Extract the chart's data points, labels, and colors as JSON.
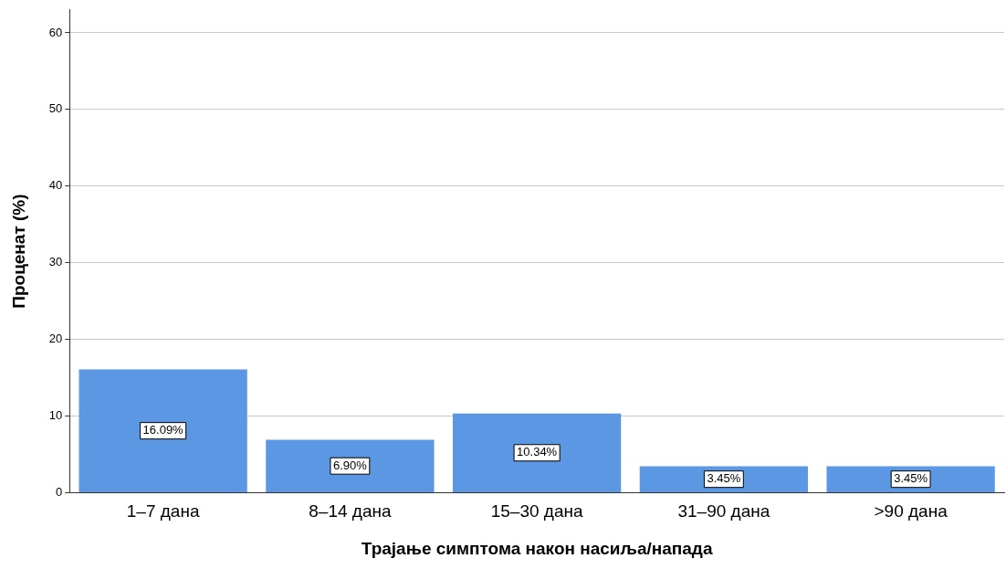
{
  "chart_data": {
    "type": "bar",
    "xlabel": "Трајање симптома након насиља/напада",
    "ylabel": "Проценат (%)",
    "categories": [
      "1–7 дана",
      "8–14 дана",
      "15–30 дана",
      "31–90 дана",
      ">90 дана"
    ],
    "values": [
      16.09,
      6.9,
      10.34,
      3.45,
      3.45
    ],
    "value_labels": [
      "16.09%",
      "6.90%",
      "10.34%",
      "3.45%",
      "3.45%"
    ],
    "color": "#5b97e3",
    "ylim": [
      0,
      63
    ],
    "yticks": [
      0,
      10,
      20,
      30,
      40,
      50,
      60
    ],
    "grid": "y",
    "legend": false
  }
}
